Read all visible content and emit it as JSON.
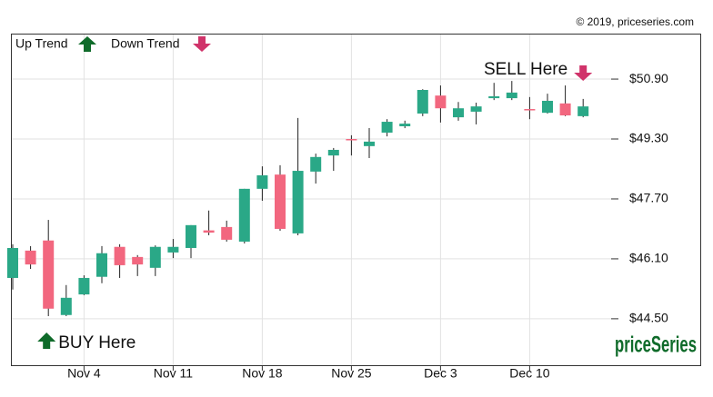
{
  "chart_data": {
    "type": "candlestick",
    "credit": "© 2019, priceseries.com",
    "logo": "priceSeries",
    "legend": {
      "up": "Up Trend",
      "down": "Down Trend"
    },
    "annotations": [
      {
        "text": "BUY Here"
      },
      {
        "text": "SELL Here"
      }
    ],
    "up_color": "#2aa887",
    "down_color": "#f2677f",
    "categories": [
      null,
      null,
      null,
      null,
      "Nov 4",
      null,
      null,
      null,
      null,
      "Nov 11",
      null,
      null,
      null,
      null,
      "Nov 18",
      null,
      null,
      null,
      null,
      "Nov 25",
      null,
      null,
      null,
      null,
      "Dec 3",
      null,
      null,
      null,
      null,
      "Dec 10",
      null,
      null,
      null
    ],
    "open": [
      45.59,
      46.32,
      46.59,
      44.6,
      45.15,
      45.62,
      46.42,
      46.15,
      45.86,
      46.27,
      46.39,
      46.86,
      46.95,
      46.56,
      47.97,
      48.35,
      46.78,
      48.43,
      48.86,
      49.3,
      49.11,
      49.47,
      49.64,
      49.98,
      50.46,
      49.88,
      50.03,
      50.39,
      50.39,
      50.1,
      50.0,
      50.25,
      49.91
    ],
    "high": [
      46.49,
      46.44,
      47.14,
      45.4,
      45.66,
      46.44,
      46.49,
      46.2,
      46.46,
      46.63,
      47.0,
      47.39,
      47.12,
      47.97,
      48.57,
      48.6,
      49.86,
      48.91,
      49.06,
      49.4,
      49.59,
      49.83,
      49.79,
      50.63,
      50.73,
      50.29,
      50.27,
      50.8,
      50.85,
      50.42,
      50.51,
      50.73,
      50.37
    ],
    "low": [
      45.28,
      45.83,
      44.57,
      44.57,
      45.13,
      45.45,
      45.59,
      45.64,
      45.64,
      46.12,
      46.12,
      46.73,
      46.56,
      46.51,
      47.65,
      46.85,
      46.73,
      48.11,
      48.45,
      48.86,
      48.79,
      49.37,
      49.59,
      49.91,
      49.74,
      49.79,
      49.69,
      50.34,
      50.34,
      49.83,
      49.98,
      49.91,
      49.88
    ],
    "close": [
      46.39,
      45.95,
      44.77,
      45.06,
      45.59,
      46.25,
      45.93,
      45.95,
      46.42,
      46.42,
      47.0,
      46.8,
      46.61,
      47.97,
      48.33,
      46.9,
      48.45,
      48.82,
      49.01,
      49.28,
      49.23,
      49.76,
      49.71,
      50.61,
      50.12,
      50.12,
      50.17,
      50.44,
      50.54,
      50.08,
      50.32,
      49.93,
      50.17
    ],
    "ylim": [
      43.26,
      52.09
    ],
    "yticks": [
      {
        "value": 44.5,
        "label": "$44.50"
      },
      {
        "value": 46.1,
        "label": "$46.10"
      },
      {
        "value": 47.7,
        "label": "$47.70"
      },
      {
        "value": 49.3,
        "label": "$49.30"
      },
      {
        "value": 50.9,
        "label": "$50.90"
      }
    ],
    "grid": true
  }
}
